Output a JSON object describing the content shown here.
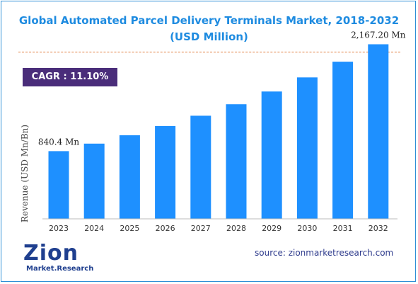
{
  "title_line1": "Global Automated Parcel Delivery Terminals Market, 2018-2032",
  "title_line2": "(USD Million)",
  "cagr": "CAGR : 11.10%",
  "source": "source: zionmarketresearch.com",
  "logo": {
    "main": "Zion",
    "sub": "Market.Research"
  },
  "colors": {
    "bar": "#1e90ff",
    "title": "#1e8be0",
    "cagr_bg": "#4a2d7a",
    "source": "#2d3a8c"
  },
  "chart_data": {
    "type": "bar",
    "ylabel": "Revenue (USD Mn/Bn)",
    "categories": [
      "2023",
      "2024",
      "2025",
      "2026",
      "2027",
      "2028",
      "2029",
      "2030",
      "2031",
      "2032"
    ],
    "values": [
      840.4,
      933.7,
      1037.3,
      1152.4,
      1280.3,
      1422.4,
      1580.3,
      1755.7,
      1950.6,
      2167.2
    ],
    "ylim": [
      0,
      2400
    ],
    "data_labels": [
      {
        "index": 0,
        "text": "840.4 Mn"
      },
      {
        "index": 9,
        "text": "2,167.20 Mn"
      }
    ],
    "grid": false
  }
}
